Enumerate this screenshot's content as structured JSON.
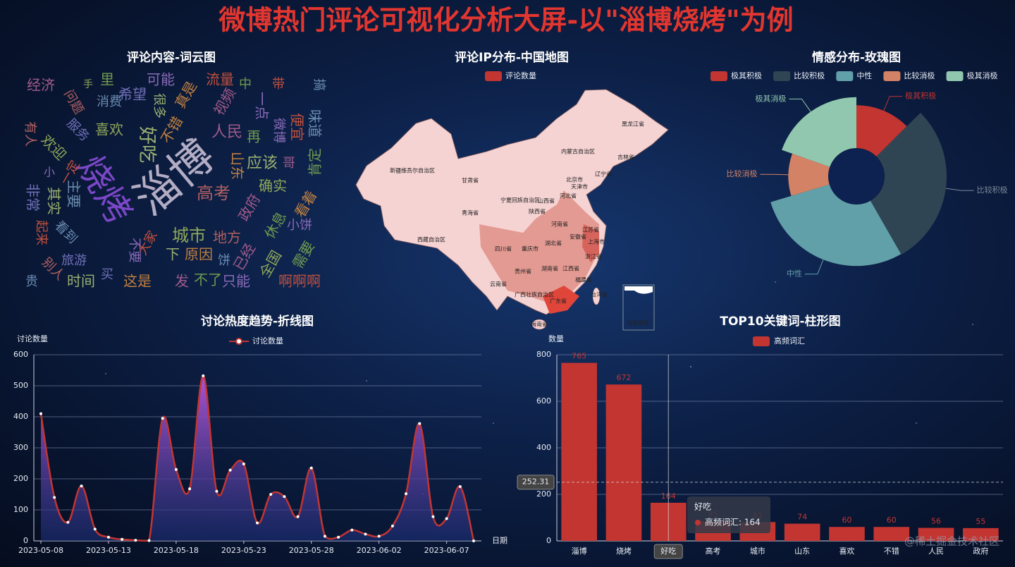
{
  "title": "微博热门评论可视化分析大屏-以\"淄博烧烤\"为例",
  "watermark": "@稀土掘金技术社区",
  "chart_data": [
    {
      "type": "wordcloud",
      "title": "评论内容-词云图",
      "words": [
        "经济",
        "里",
        "可能",
        "流量",
        "搞",
        "手",
        "问题",
        "希望",
        "很多",
        "真是",
        "视频",
        "中",
        "一点",
        "带",
        "消费",
        "喜欢",
        "有人",
        "服务",
        "好吃",
        "不错",
        "人民",
        "再",
        "微博",
        "便宜",
        "味道",
        "欢迎",
        "淄博",
        "烧烤",
        "应该",
        "山东",
        "哥",
        "肯定",
        "小",
        "一定",
        "主要",
        "确实",
        "高考",
        "非常",
        "其实",
        "看着",
        "政府",
        "休息",
        "小饼",
        "起来",
        "看到",
        "城市",
        "地方",
        "旅游",
        "下",
        "原因",
        "已经",
        "需要",
        "不要",
        "大家",
        "饼",
        "全国",
        "别人",
        "买",
        "时间",
        "这是",
        "发",
        "不了",
        "只能",
        "啊啊啊",
        "贵"
      ]
    },
    {
      "type": "map",
      "title": "评论IP分布-中国地图",
      "legend": "评论数量",
      "color": "#c23531",
      "regions": [
        "新疆维吾尔自治区",
        "西藏自治区",
        "青海省",
        "甘肃省",
        "内蒙古自治区",
        "黑龙江省",
        "吉林省",
        "辽宁省",
        "北京市",
        "天津市",
        "河北省",
        "山西省",
        "宁夏回族自治区",
        "陕西省",
        "河南省",
        "江苏省",
        "安徽省",
        "上海市",
        "湖北省",
        "四川省",
        "重庆市",
        "浙江省",
        "贵州省",
        "湖南省",
        "江西省",
        "云南省",
        "广西壮族自治区",
        "福建省",
        "广东省",
        "海南省",
        "台湾省",
        "南海诸岛"
      ]
    },
    {
      "type": "pie",
      "title": "情感分布-玫瑰图",
      "rose": true,
      "categories": [
        "极其积极",
        "比较积极",
        "中性",
        "比较消极",
        "极其消极"
      ],
      "values": [
        125,
        290,
        285,
        100,
        195
      ],
      "colors": [
        "#c23531",
        "#2f4554",
        "#61a0a8",
        "#d48265",
        "#91c7ae"
      ]
    },
    {
      "type": "line",
      "title": "讨论热度趋势-折线图",
      "legend": "讨论数量",
      "ylabel": "讨论数量",
      "xlabel": "日期",
      "x": [
        "2023-05-08",
        null,
        null,
        null,
        null,
        "2023-05-13",
        null,
        null,
        null,
        null,
        "2023-05-18",
        null,
        null,
        null,
        null,
        "2023-05-23",
        null,
        null,
        null,
        null,
        "2023-05-28",
        null,
        null,
        null,
        null,
        "2023-06-02",
        null,
        null,
        null,
        null,
        "2023-06-07",
        null,
        null
      ],
      "values": [
        410,
        140,
        60,
        177,
        38,
        12,
        5,
        2,
        1,
        395,
        230,
        168,
        532,
        160,
        228,
        248,
        58,
        150,
        143,
        78,
        235,
        15,
        12,
        35,
        22,
        15,
        48,
        152,
        378,
        78,
        72,
        175,
        0
      ],
      "ylim": [
        0,
        600
      ],
      "yticks": [
        0,
        100,
        200,
        300,
        400,
        500,
        600
      ],
      "grid": true,
      "color": "#c23531"
    },
    {
      "type": "bar",
      "title": "TOP10关键词-柱形图",
      "legend": "高频词汇",
      "ylabel": "数量",
      "categories": [
        "淄博",
        "烧烤",
        "好吃",
        "高考",
        "城市",
        "山东",
        "喜欢",
        "不错",
        "人民",
        "政府"
      ],
      "values": [
        765,
        672,
        164,
        85,
        81,
        74,
        60,
        60,
        56,
        55
      ],
      "ylim": [
        0,
        800
      ],
      "yticks": [
        0,
        200,
        400,
        600,
        800
      ],
      "grid": true,
      "color": "#c23531",
      "pointer": {
        "index": 2,
        "value": 252.31
      },
      "tooltip": {
        "title": "好吃",
        "text": "高频词汇: 164"
      }
    }
  ]
}
